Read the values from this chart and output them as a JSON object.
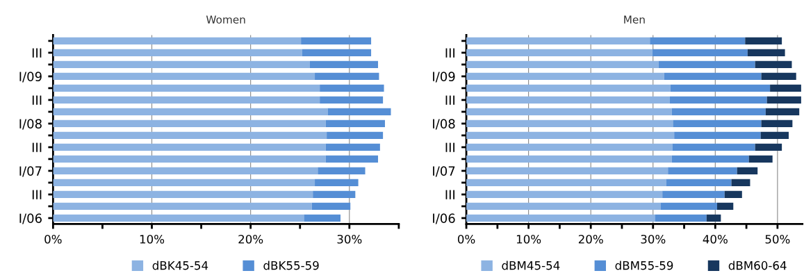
{
  "chart_data": [
    {
      "type": "bar",
      "title": "Women",
      "orientation": "horizontal",
      "stacked": true,
      "categories": [
        null,
        "III",
        null,
        "I/09",
        null,
        "III",
        null,
        "I/08",
        null,
        "III",
        null,
        "I/07",
        null,
        "III",
        null,
        "I/06"
      ],
      "series": [
        {
          "name": "dBK45-54",
          "color": "#8db3e2",
          "values": [
            25.1,
            25.2,
            26.0,
            26.5,
            27.0,
            27.0,
            27.8,
            27.6,
            27.7,
            27.6,
            27.6,
            26.8,
            26.5,
            26.3,
            26.2,
            25.4
          ]
        },
        {
          "name": "dBK55-59",
          "color": "#558ed5",
          "values": [
            7.1,
            7.0,
            6.9,
            6.5,
            6.5,
            6.4,
            6.4,
            6.0,
            5.7,
            5.5,
            5.3,
            4.8,
            4.4,
            4.3,
            3.9,
            3.7
          ]
        }
      ],
      "xlim": [
        0,
        35
      ],
      "xticks": [
        {
          "value": 0,
          "label": "0%"
        },
        {
          "value": 5,
          "label": null
        },
        {
          "value": 10,
          "label": "10%"
        },
        {
          "value": 15,
          "label": null
        },
        {
          "value": 20,
          "label": "20%"
        },
        {
          "value": 25,
          "label": null
        },
        {
          "value": 30,
          "label": "30%"
        },
        {
          "value": 35,
          "label": null
        }
      ],
      "grid": "x",
      "legend": "bottom"
    },
    {
      "type": "bar",
      "title": "Men",
      "orientation": "horizontal",
      "stacked": true,
      "categories": [
        null,
        "III",
        null,
        "I/09",
        null,
        "III",
        null,
        "I/08",
        null,
        "III",
        null,
        "I/07",
        null,
        "III",
        null,
        "I/06"
      ],
      "series": [
        {
          "name": "dBM45-54",
          "color": "#8db3e2",
          "values": [
            29.5,
            29.9,
            30.9,
            31.8,
            32.8,
            32.7,
            33.0,
            33.2,
            33.4,
            33.1,
            33.0,
            32.4,
            32.1,
            31.5,
            31.2,
            30.3
          ]
        },
        {
          "name": "dBM55-59",
          "color": "#558ed5",
          "values": [
            15.3,
            15.3,
            15.5,
            15.6,
            16.0,
            15.6,
            15.1,
            14.2,
            13.9,
            13.3,
            12.4,
            11.1,
            10.5,
            10.0,
            9.1,
            8.3
          ]
        },
        {
          "name": "dBM60-64",
          "color": "#17375e",
          "values": [
            5.9,
            6.0,
            5.9,
            5.6,
            5.0,
            5.5,
            5.4,
            5.0,
            4.5,
            4.3,
            3.8,
            3.3,
            3.0,
            2.8,
            2.6,
            2.3
          ]
        }
      ],
      "xlim": [
        0,
        54
      ],
      "xticks": [
        {
          "value": 0,
          "label": "0%"
        },
        {
          "value": 5,
          "label": null
        },
        {
          "value": 10,
          "label": "10%"
        },
        {
          "value": 15,
          "label": null
        },
        {
          "value": 20,
          "label": "20%"
        },
        {
          "value": 25,
          "label": null
        },
        {
          "value": 30,
          "label": "30%"
        },
        {
          "value": 35,
          "label": null
        },
        {
          "value": 40,
          "label": "40%"
        },
        {
          "value": 45,
          "label": null
        },
        {
          "value": 50,
          "label": "50%"
        }
      ],
      "grid": "x",
      "legend": "bottom"
    }
  ]
}
